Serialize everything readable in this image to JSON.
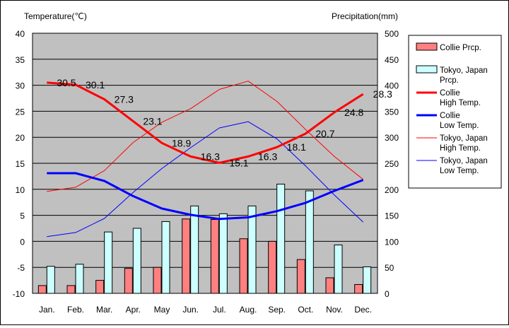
{
  "chart_data": {
    "type": "bar+line",
    "y_left_label": "Temperature(℃)",
    "y_right_label": "Precipitation(mm)",
    "y_left_range": [
      -10,
      40
    ],
    "y_left_ticks": [
      "40",
      "35",
      "30",
      "25",
      "20",
      "15",
      "10",
      "5",
      "0",
      "-5",
      "-10"
    ],
    "y_right_range": [
      0,
      500
    ],
    "y_right_ticks": [
      "500",
      "450",
      "400",
      "350",
      "300",
      "250",
      "200",
      "150",
      "100",
      "50",
      "0"
    ],
    "categories": [
      "Jan.",
      "Feb.",
      "Mar.",
      "Apr.",
      "May",
      "Jun.",
      "Jul.",
      "Aug.",
      "Sep.",
      "Oct.",
      "Nov.",
      "Dec."
    ],
    "bars": [
      {
        "name": "Collie Prcp.",
        "color": "#ff8080",
        "values": [
          15,
          15,
          25,
          48,
          50,
          143,
          142,
          105,
          100,
          65,
          30,
          17
        ]
      },
      {
        "name": "Tokyo, Japan Prcp.",
        "color": "#ccffff",
        "values": [
          52,
          56,
          118,
          125,
          138,
          168,
          153,
          168,
          210,
          197,
          93,
          51
        ]
      }
    ],
    "lines": [
      {
        "name": "Collie High Temp.",
        "color": "#ff0000",
        "width": 3,
        "values": [
          30.5,
          30.1,
          27.3,
          23.1,
          18.9,
          16.3,
          15.1,
          16.3,
          18.1,
          20.7,
          24.8,
          28.3
        ],
        "labels": [
          "30.5",
          "30.1",
          "27.3",
          "23.1",
          "18.9",
          "16.3",
          "15.1",
          "16.3",
          "18.1",
          "20.7",
          "24.8",
          "28.3"
        ]
      },
      {
        "name": "Collie Low Temp.",
        "color": "#0000ff",
        "width": 3,
        "values": [
          13.1,
          13.1,
          11.6,
          8.7,
          6.3,
          5.1,
          4.3,
          4.6,
          5.8,
          7.4,
          9.7,
          11.8
        ]
      },
      {
        "name": "Tokyo, Japan High Temp.",
        "color": "#ff0000",
        "width": 1,
        "values": [
          9.6,
          10.4,
          13.6,
          19.0,
          22.9,
          25.5,
          29.2,
          30.8,
          26.9,
          21.5,
          16.3,
          11.9
        ]
      },
      {
        "name": "Tokyo, Japan Low Temp.",
        "color": "#0000ff",
        "width": 1,
        "values": [
          0.9,
          1.7,
          4.4,
          9.4,
          14.0,
          18.0,
          21.8,
          23.0,
          19.7,
          14.5,
          8.9,
          3.7
        ]
      }
    ],
    "legend": [
      {
        "key": "collie-prcp",
        "kind": "bar",
        "color": "#ff8080",
        "lines": [
          "Collie Prcp."
        ]
      },
      {
        "key": "tokyo-prcp",
        "kind": "bar",
        "color": "#ccffff",
        "lines": [
          "Tokyo, Japan",
          "Prcp."
        ]
      },
      {
        "key": "collie-high",
        "kind": "line",
        "color": "#ff0000",
        "width": 3,
        "lines": [
          "Collie",
          " High Temp."
        ]
      },
      {
        "key": "collie-low",
        "kind": "line",
        "color": "#0000ff",
        "width": 3,
        "lines": [
          "Collie",
          " Low Temp."
        ]
      },
      {
        "key": "tokyo-high",
        "kind": "line",
        "color": "#ff0000",
        "width": 1,
        "lines": [
          "Tokyo, Japan",
          "High Temp."
        ]
      },
      {
        "key": "tokyo-low",
        "kind": "line",
        "color": "#0000ff",
        "width": 1,
        "lines": [
          "Tokyo, Japan",
          "Low Temp."
        ]
      }
    ],
    "grid": true,
    "legend_position": "right",
    "plot_background": "#c0c0c0"
  }
}
